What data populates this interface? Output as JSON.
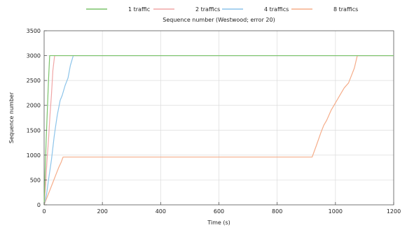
{
  "chart_data": {
    "type": "line",
    "title": "Sequence number (Westwood; error 20)",
    "xlabel": "Time (s)",
    "ylabel": "Sequence number",
    "xlim": [
      0,
      1200
    ],
    "ylim": [
      0,
      3500
    ],
    "x_ticks": [
      0,
      200,
      400,
      600,
      800,
      1000,
      1200
    ],
    "y_ticks": [
      0,
      500,
      1000,
      1500,
      2000,
      2500,
      3000,
      3500
    ],
    "grid": true,
    "legend_position": "top",
    "series": [
      {
        "name": "1 traffic",
        "color": "#7ac46a",
        "points": [
          [
            0,
            0
          ],
          [
            3,
            600
          ],
          [
            7,
            1300
          ],
          [
            11,
            1900
          ],
          [
            15,
            2500
          ],
          [
            19,
            3000
          ],
          [
            1200,
            3000
          ]
        ]
      },
      {
        "name": "2 traffics",
        "color": "#f0a6a6",
        "points": [
          [
            0,
            0
          ],
          [
            5,
            400
          ],
          [
            10,
            900
          ],
          [
            15,
            1300
          ],
          [
            20,
            1800
          ],
          [
            25,
            2200
          ],
          [
            30,
            2700
          ],
          [
            36,
            3000
          ],
          [
            1200,
            3000
          ]
        ]
      },
      {
        "name": "4 traffics",
        "color": "#8cc4ea",
        "points": [
          [
            0,
            0
          ],
          [
            8,
            200
          ],
          [
            15,
            500
          ],
          [
            25,
            900
          ],
          [
            35,
            1400
          ],
          [
            45,
            1800
          ],
          [
            55,
            2100
          ],
          [
            62,
            2200
          ],
          [
            72,
            2400
          ],
          [
            82,
            2550
          ],
          [
            90,
            2800
          ],
          [
            100,
            3000
          ],
          [
            1200,
            3000
          ]
        ]
      },
      {
        "name": "8 traffics",
        "color": "#f5ad8a",
        "points": [
          [
            0,
            0
          ],
          [
            10,
            150
          ],
          [
            20,
            300
          ],
          [
            30,
            450
          ],
          [
            40,
            600
          ],
          [
            50,
            750
          ],
          [
            58,
            850
          ],
          [
            65,
            960
          ],
          [
            920,
            960
          ],
          [
            935,
            1200
          ],
          [
            950,
            1450
          ],
          [
            960,
            1600
          ],
          [
            970,
            1700
          ],
          [
            985,
            1900
          ],
          [
            1000,
            2050
          ],
          [
            1015,
            2200
          ],
          [
            1030,
            2350
          ],
          [
            1045,
            2450
          ],
          [
            1055,
            2600
          ],
          [
            1065,
            2750
          ],
          [
            1075,
            3000
          ],
          [
            1200,
            3000
          ]
        ]
      }
    ]
  }
}
